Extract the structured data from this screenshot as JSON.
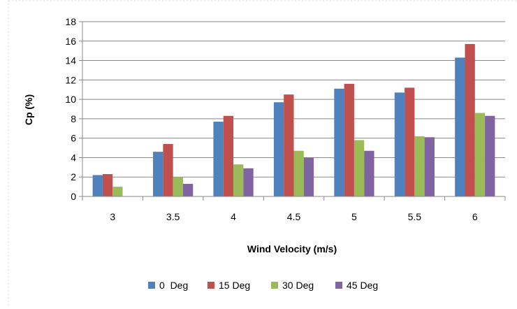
{
  "chart_data": {
    "type": "bar",
    "title": "",
    "xlabel": "Wind Velocity (m/s)",
    "ylabel": "Cp (%)",
    "ylim": [
      0,
      18
    ],
    "ytick_step": 2,
    "grid": true,
    "legend_position": "bottom",
    "categories": [
      "3",
      "3.5",
      "4",
      "4.5",
      "5",
      "5.5",
      "6"
    ],
    "series": [
      {
        "name": "0  Deg",
        "color": "#4F81BD",
        "values": [
          2.2,
          4.6,
          7.7,
          9.7,
          11.1,
          10.7,
          14.3
        ]
      },
      {
        "name": "15 Deg",
        "color": "#C0504D",
        "values": [
          2.3,
          5.4,
          8.3,
          10.5,
          11.6,
          11.2,
          15.7
        ]
      },
      {
        "name": "30 Deg",
        "color": "#9BBB59",
        "values": [
          1.0,
          2.0,
          3.3,
          4.7,
          5.8,
          6.2,
          8.6
        ]
      },
      {
        "name": "45 Deg",
        "color": "#8064A2",
        "values": [
          0.0,
          1.3,
          2.9,
          4.0,
          4.7,
          6.1,
          8.3
        ]
      }
    ]
  }
}
